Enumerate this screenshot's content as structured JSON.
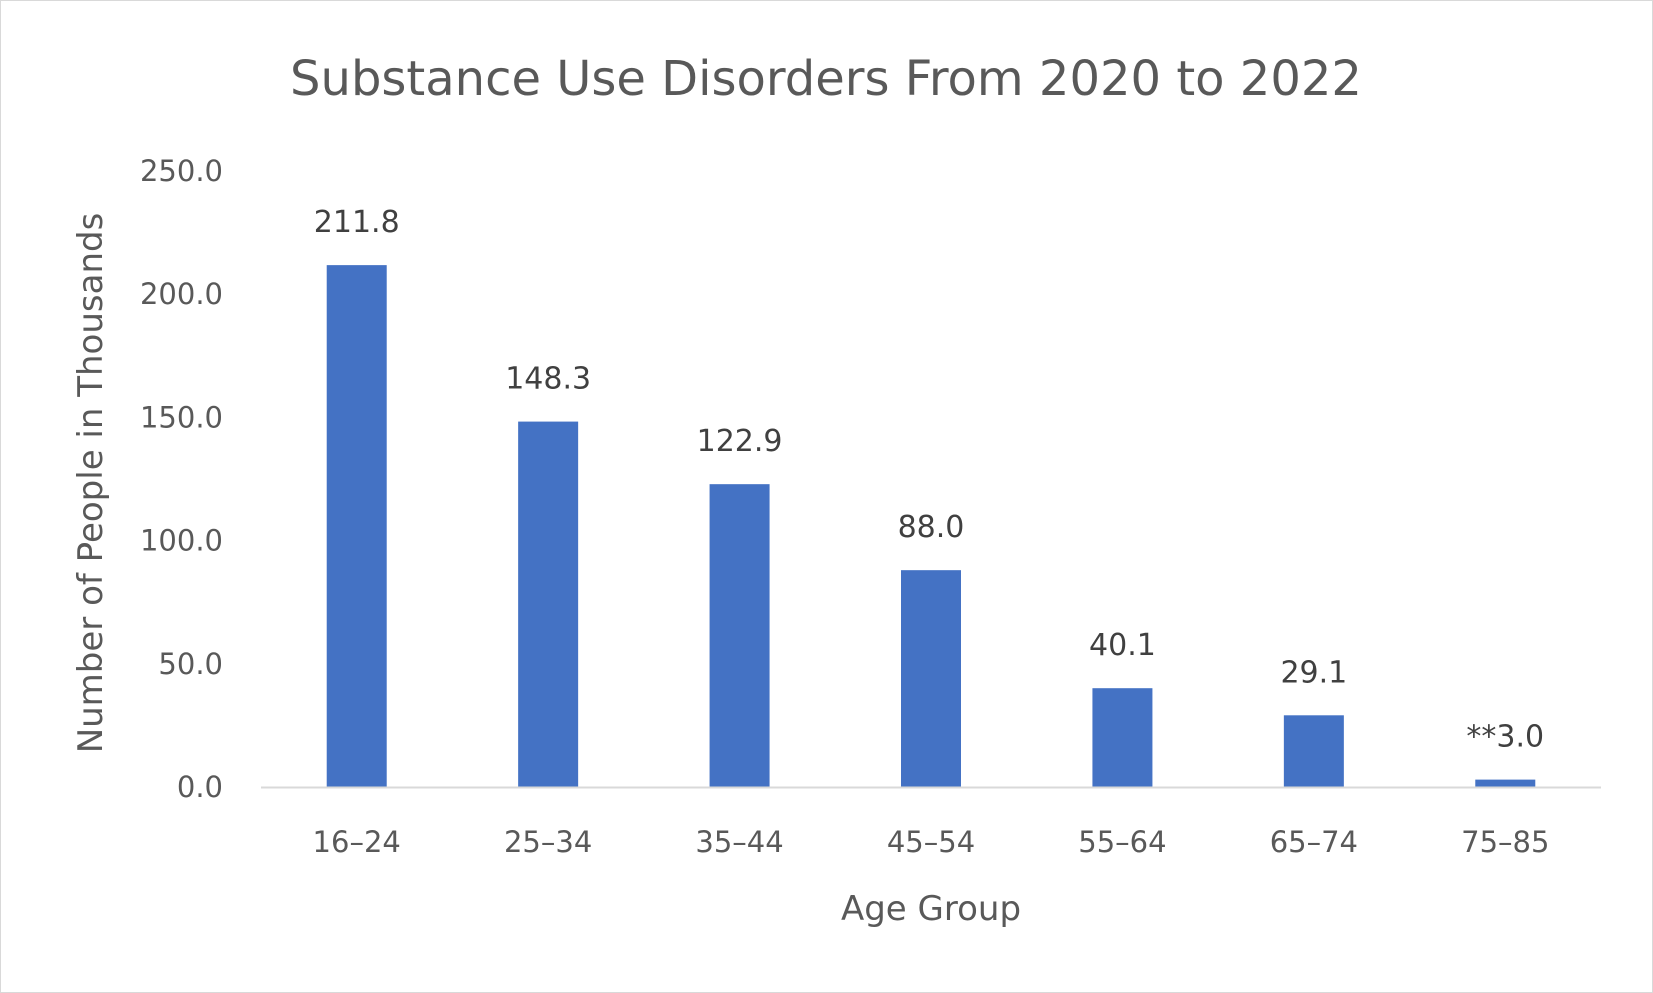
{
  "chart_data": {
    "type": "bar",
    "title": "Substance Use Disorders From 2020 to 2022",
    "xlabel": "Age Group",
    "ylabel": "Number of People in Thousands",
    "categories": [
      "16–24",
      "25–34",
      "35–44",
      "45–54",
      "55–64",
      "65–74",
      "75–85"
    ],
    "values": [
      211.8,
      148.3,
      122.9,
      88.0,
      40.1,
      29.1,
      3.0
    ],
    "data_labels": [
      "211.8",
      "148.3",
      "122.9",
      "88.0",
      "40.1",
      "29.1",
      "**3.0"
    ],
    "ylim": [
      0,
      250
    ],
    "yticks": [
      "0.0",
      "50.0",
      "100.0",
      "150.0",
      "200.0",
      "250.0"
    ],
    "grid": false,
    "legend": "none",
    "bar_color": "#4472C4",
    "axis_color": "#d9d9d9"
  }
}
